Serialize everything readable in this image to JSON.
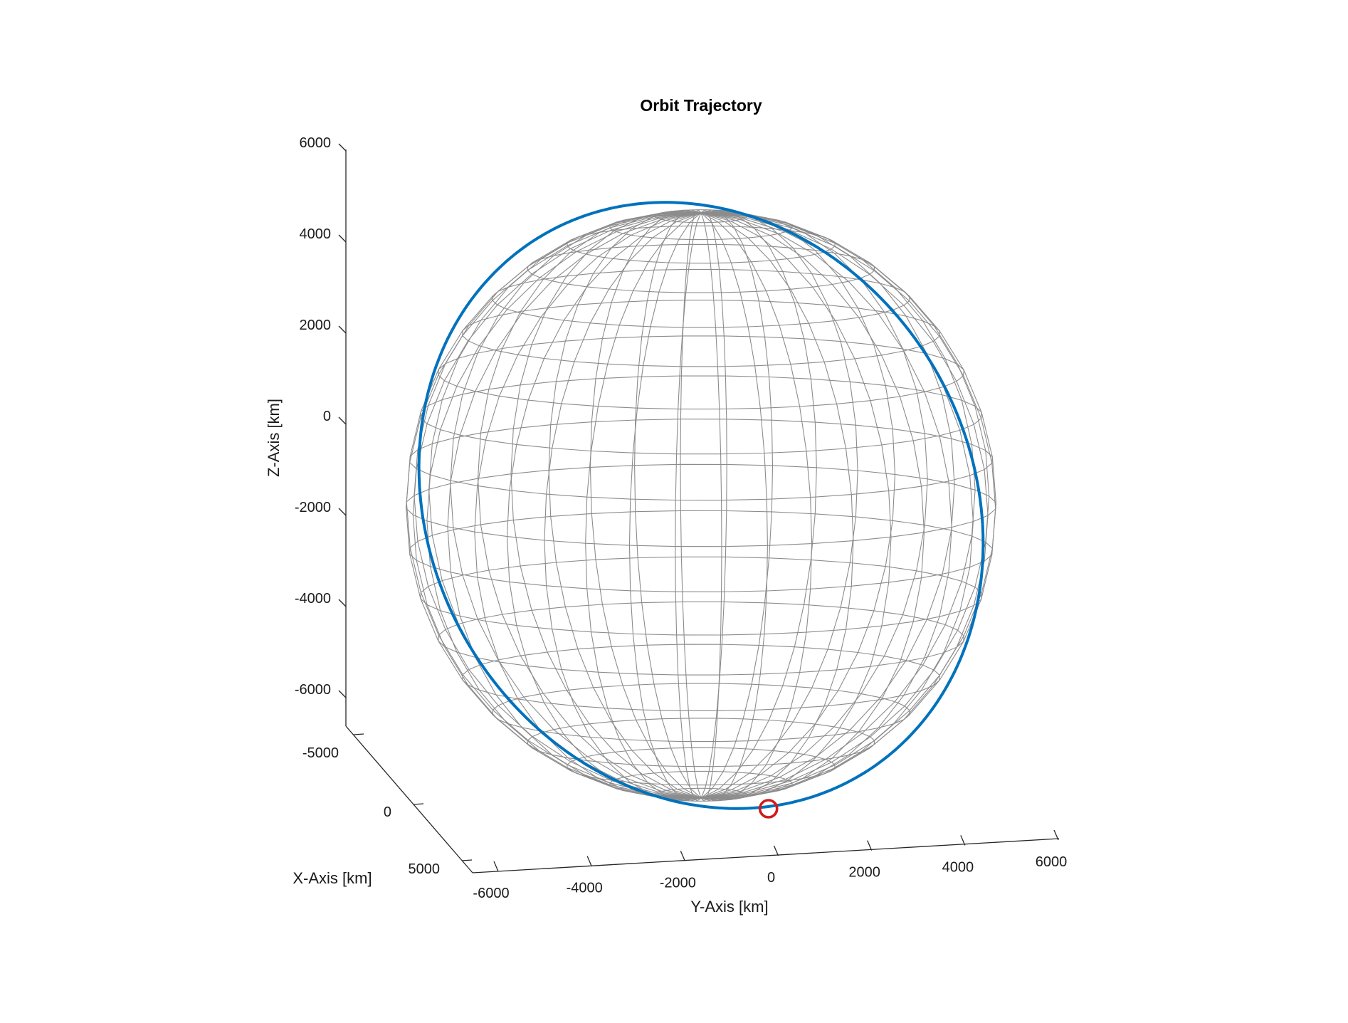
{
  "chart_data": {
    "type": "line",
    "title": "Orbit Trajectory",
    "xlabel": "X-Axis [km]",
    "ylabel": "Y-Axis [km]",
    "zlabel": "Z-Axis [km]",
    "xlim": [
      -6000,
      6000
    ],
    "ylim": [
      -6500,
      6500
    ],
    "zlim": [
      -6500,
      6500
    ],
    "x_ticks": [
      "-5000",
      "0",
      "5000"
    ],
    "y_ticks": [
      "-6000",
      "-4000",
      "-2000",
      "0",
      "2000",
      "4000",
      "6000"
    ],
    "z_ticks": [
      "-6000",
      "-4000",
      "-2000",
      "0",
      "2000",
      "4000",
      "6000"
    ],
    "sphere": {
      "radius_km": 6371,
      "color": "#8c8c8c"
    },
    "series": [
      {
        "type": "line",
        "color": "#0072bd",
        "inclination_deg": 97.5,
        "raan_deg": 60,
        "radius_km": 6750
      },
      {
        "type": "marker",
        "marker": "circle",
        "color": "#d11a1a",
        "x": 800,
        "y": 1400,
        "z": -6500
      }
    ],
    "view": {
      "azimuth_deg": 4,
      "elevation_deg": 8
    }
  }
}
